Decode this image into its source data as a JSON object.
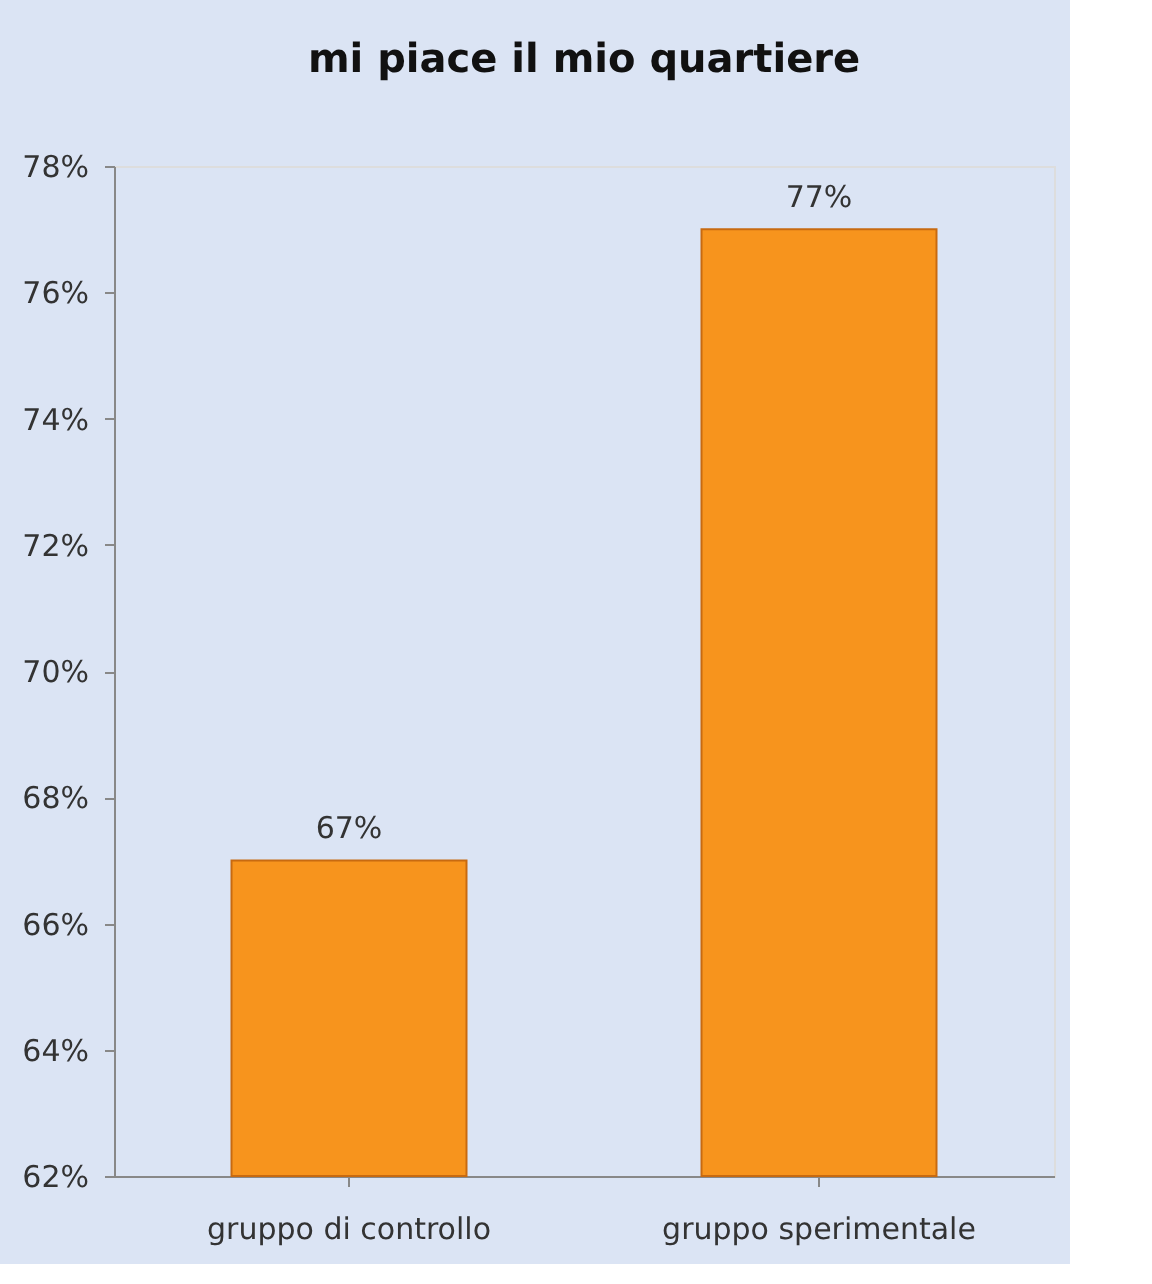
{
  "chart_data": {
    "type": "bar",
    "title": "mi piace il mio quartiere",
    "categories": [
      "gruppo di controllo",
      "gruppo sperimentale"
    ],
    "values": [
      67,
      77
    ],
    "value_labels": [
      "67%",
      "77%"
    ],
    "color": "#f7941d",
    "ylim": [
      62,
      78
    ],
    "yticks": [
      {
        "value": 62,
        "label": "62%"
      },
      {
        "value": 64,
        "label": "64%"
      },
      {
        "value": 66,
        "label": "66%"
      },
      {
        "value": 68,
        "label": "68%"
      },
      {
        "value": 70,
        "label": "70%"
      },
      {
        "value": 72,
        "label": "72%"
      },
      {
        "value": 74,
        "label": "74%"
      },
      {
        "value": 76,
        "label": "76%"
      },
      {
        "value": 78,
        "label": "78%"
      }
    ],
    "grid": false
  }
}
